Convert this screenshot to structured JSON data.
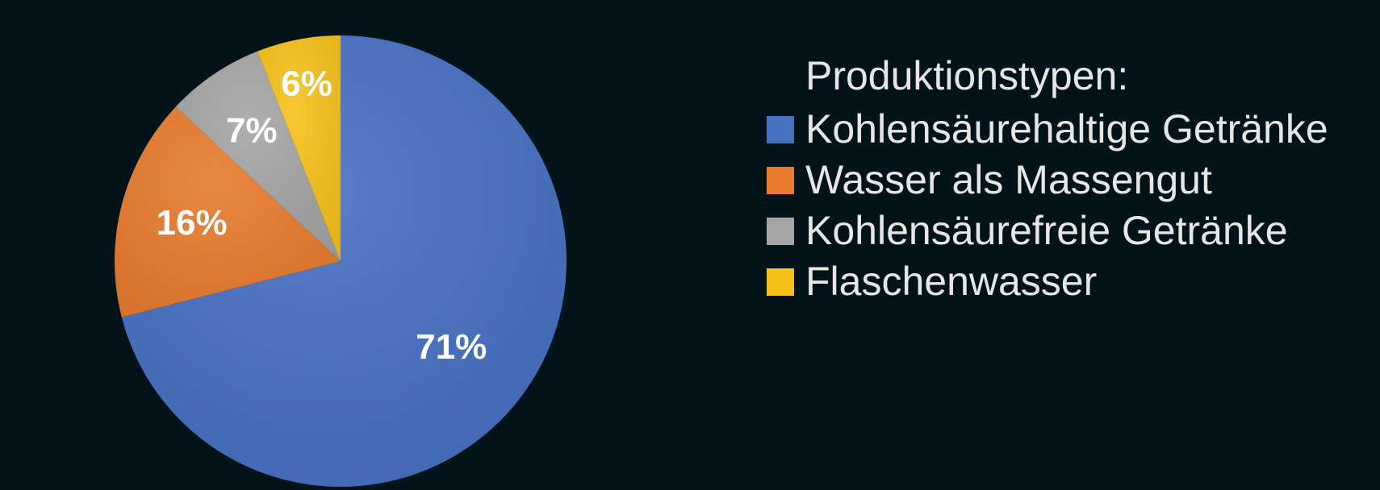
{
  "chart_data": {
    "type": "pie",
    "legend_title": "Produktionstypen:",
    "legend_position": "right",
    "slices": [
      {
        "label": "Kohlensäurehaltige Getränke",
        "value": 71,
        "value_label": "71%",
        "color": "#4670c2"
      },
      {
        "label": "Wasser als Massengut",
        "value": 16,
        "value_label": "16%",
        "color": "#e87b2e"
      },
      {
        "label": "Kohlensäurefreie Getränke",
        "value": 7,
        "value_label": "7%",
        "color": "#a6a6a6"
      },
      {
        "label": "Flaschenwasser",
        "value": 6,
        "value_label": "6%",
        "color": "#f6c21a"
      }
    ]
  }
}
